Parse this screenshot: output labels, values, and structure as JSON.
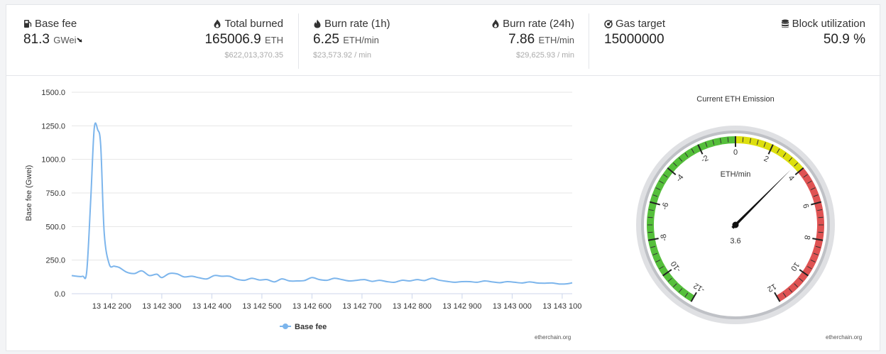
{
  "stats": {
    "base_fee": {
      "label": "Base fee",
      "value": "81.3",
      "unit": "GWei"
    },
    "total_burned": {
      "label": "Total burned",
      "value": "165006.9",
      "unit": "ETH",
      "sub": "$622,013,370.35"
    },
    "burn_1h": {
      "label": "Burn rate (1h)",
      "value": "6.25",
      "unit": "ETH/min",
      "sub": "$23,573.92 / min"
    },
    "burn_24h": {
      "label": "Burn rate (24h)",
      "value": "7.86",
      "unit": "ETH/min",
      "sub": "$29,625.93 / min"
    },
    "gas_target": {
      "label": "Gas target",
      "value": "15000000"
    },
    "block_util": {
      "label": "Block utilization",
      "value": "50.9 %"
    }
  },
  "icons": {
    "base_fee": "gas-pump-icon",
    "total_burned": "flame-icon",
    "burn_1h": "fire-icon",
    "burn_24h": "flame-icon",
    "gas_target": "target-icon",
    "block_util": "database-icon"
  },
  "chart_data": [
    {
      "type": "line",
      "ylabel": "Base fee (Gwei)",
      "ylim": [
        0,
        1500
      ],
      "yticks": [
        "0.0",
        "250.0",
        "500.0",
        "750.0",
        "1000.0",
        "1250.0",
        "1500.0"
      ],
      "xlim": [
        13142120,
        13143120
      ],
      "xticks": [
        "13 142 200",
        "13 142 300",
        "13 142 400",
        "13 142 500",
        "13 142 600",
        "13 142 700",
        "13 142 800",
        "13 142 900",
        "13 143 000",
        "13 143 100"
      ],
      "grid": true,
      "legend": "bottom",
      "color": "#7cb5ec",
      "series": [
        {
          "name": "Base fee",
          "x": [
            13142120,
            13142130,
            13142142,
            13142150,
            13142158,
            13142165,
            13142172,
            13142178,
            13142185,
            13142195,
            13142205,
            13142215,
            13142230,
            13142245,
            13142260,
            13142275,
            13142290,
            13142300,
            13142315,
            13142330,
            13142345,
            13142360,
            13142375,
            13142390,
            13142405,
            13142420,
            13142435,
            13142450,
            13142465,
            13142480,
            13142495,
            13142510,
            13142525,
            13142540,
            13142555,
            13142570,
            13142585,
            13142600,
            13142615,
            13142630,
            13142645,
            13142660,
            13142675,
            13142690,
            13142705,
            13142720,
            13142735,
            13142750,
            13142765,
            13142780,
            13142795,
            13142810,
            13142825,
            13142840,
            13142855,
            13142870,
            13142885,
            13142900,
            13142915,
            13142930,
            13142945,
            13142960,
            13142975,
            13142990,
            13143005,
            13143020,
            13143035,
            13143050,
            13143065,
            13143080,
            13143095,
            13143110,
            13143120
          ],
          "y": [
            135,
            130,
            130,
            165,
            700,
            1230,
            1220,
            1100,
            450,
            220,
            205,
            195,
            160,
            150,
            170,
            135,
            145,
            120,
            150,
            148,
            125,
            130,
            118,
            110,
            135,
            130,
            130,
            108,
            100,
            115,
            102,
            105,
            88,
            110,
            95,
            95,
            98,
            120,
            105,
            100,
            115,
            105,
            95,
            100,
            105,
            92,
            100,
            90,
            85,
            100,
            95,
            105,
            98,
            115,
            100,
            92,
            85,
            90,
            90,
            85,
            95,
            88,
            82,
            90,
            85,
            80,
            88,
            80,
            78,
            80,
            72,
            74,
            81
          ]
        }
      ],
      "credit": "etherchain.org"
    },
    {
      "type": "gauge",
      "title": "Current ETH Emission",
      "unit_label": "ETH/min",
      "range": [
        -12,
        12
      ],
      "major_ticks": [
        "-12",
        "-10",
        "-8",
        "-6",
        "-4",
        "-2",
        "0",
        "2",
        "4",
        "6",
        "8",
        "10",
        "12"
      ],
      "bands": [
        {
          "from": -12,
          "to": 0,
          "color": "#55bf3b"
        },
        {
          "from": 0,
          "to": 4,
          "color": "#dddf0d"
        },
        {
          "from": 4,
          "to": 12,
          "color": "#df5353"
        }
      ],
      "value": 3.6,
      "value_label": "3.6",
      "credit": "etherchain.org"
    }
  ]
}
